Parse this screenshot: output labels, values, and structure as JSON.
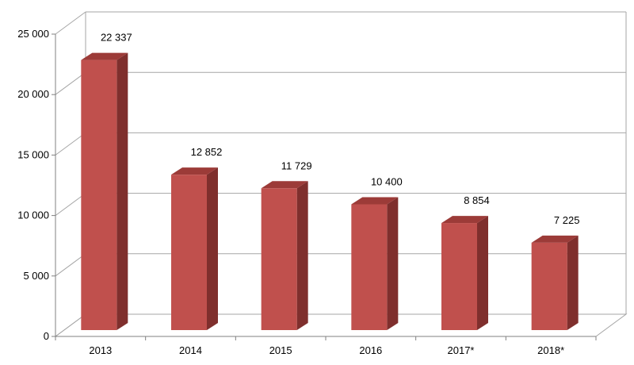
{
  "chart_data": {
    "type": "bar",
    "categories": [
      "2013",
      "2014",
      "2015",
      "2016",
      "2017*",
      "2018*"
    ],
    "values": [
      22337,
      12852,
      11729,
      10400,
      8854,
      7225
    ],
    "data_labels": [
      "22 337",
      "12 852",
      "11 729",
      "10 400",
      "8 854",
      "7 225"
    ],
    "y_ticks": [
      0,
      5000,
      10000,
      15000,
      20000,
      25000
    ],
    "y_tick_labels": [
      "0",
      "5 000",
      "10 000",
      "15 000",
      "20 000",
      "25 000"
    ],
    "ylim": [
      0,
      25000
    ],
    "title": "",
    "xlabel": "",
    "ylabel": "",
    "grid": true,
    "style": "3d-column",
    "colors": {
      "bar_front": "#c0504d",
      "bar_side": "#7f2f2d",
      "bar_top": "#9c3b38",
      "grid": "#a6a6a6",
      "axis": "#808080"
    }
  }
}
